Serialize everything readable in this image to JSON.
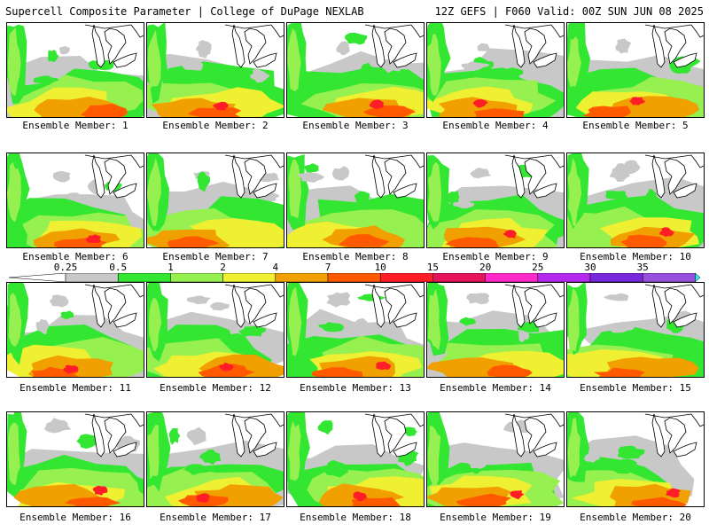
{
  "header": {
    "title_left": "Supercell Composite Parameter | College of DuPage NEXLAB",
    "title_right": "12Z GEFS | F060 Valid: 00Z SUN JUN 08 2025"
  },
  "panels": [
    {
      "label": "Ensemble Member: 1"
    },
    {
      "label": "Ensemble Member: 2"
    },
    {
      "label": "Ensemble Member: 3"
    },
    {
      "label": "Ensemble Member: 4"
    },
    {
      "label": "Ensemble Member: 5"
    },
    {
      "label": "Ensemble Member: 6"
    },
    {
      "label": "Ensemble Member: 7"
    },
    {
      "label": "Ensemble Member: 8"
    },
    {
      "label": "Ensemble Member: 9"
    },
    {
      "label": "Ensemble Member: 10"
    },
    {
      "label": "Ensemble Member: 11"
    },
    {
      "label": "Ensemble Member: 12"
    },
    {
      "label": "Ensemble Member: 13"
    },
    {
      "label": "Ensemble Member: 14"
    },
    {
      "label": "Ensemble Member: 15"
    },
    {
      "label": "Ensemble Member: 16"
    },
    {
      "label": "Ensemble Member: 17"
    },
    {
      "label": "Ensemble Member: 18"
    },
    {
      "label": "Ensemble Member: 19"
    },
    {
      "label": "Ensemble Member: 20"
    }
  ],
  "colorbar": {
    "ticks": [
      "0.25",
      "0.5",
      "1",
      "2",
      "4",
      "7",
      "10",
      "15",
      "20",
      "25",
      "30",
      "35"
    ],
    "colors": [
      "#c8c8c8",
      "#32e632",
      "#96f050",
      "#f0f032",
      "#f0a000",
      "#ff5a00",
      "#ff1e28",
      "#e6145a",
      "#ff28c8",
      "#b428f0",
      "#7828dc",
      "#9650dc",
      "#32e6f0"
    ]
  }
}
